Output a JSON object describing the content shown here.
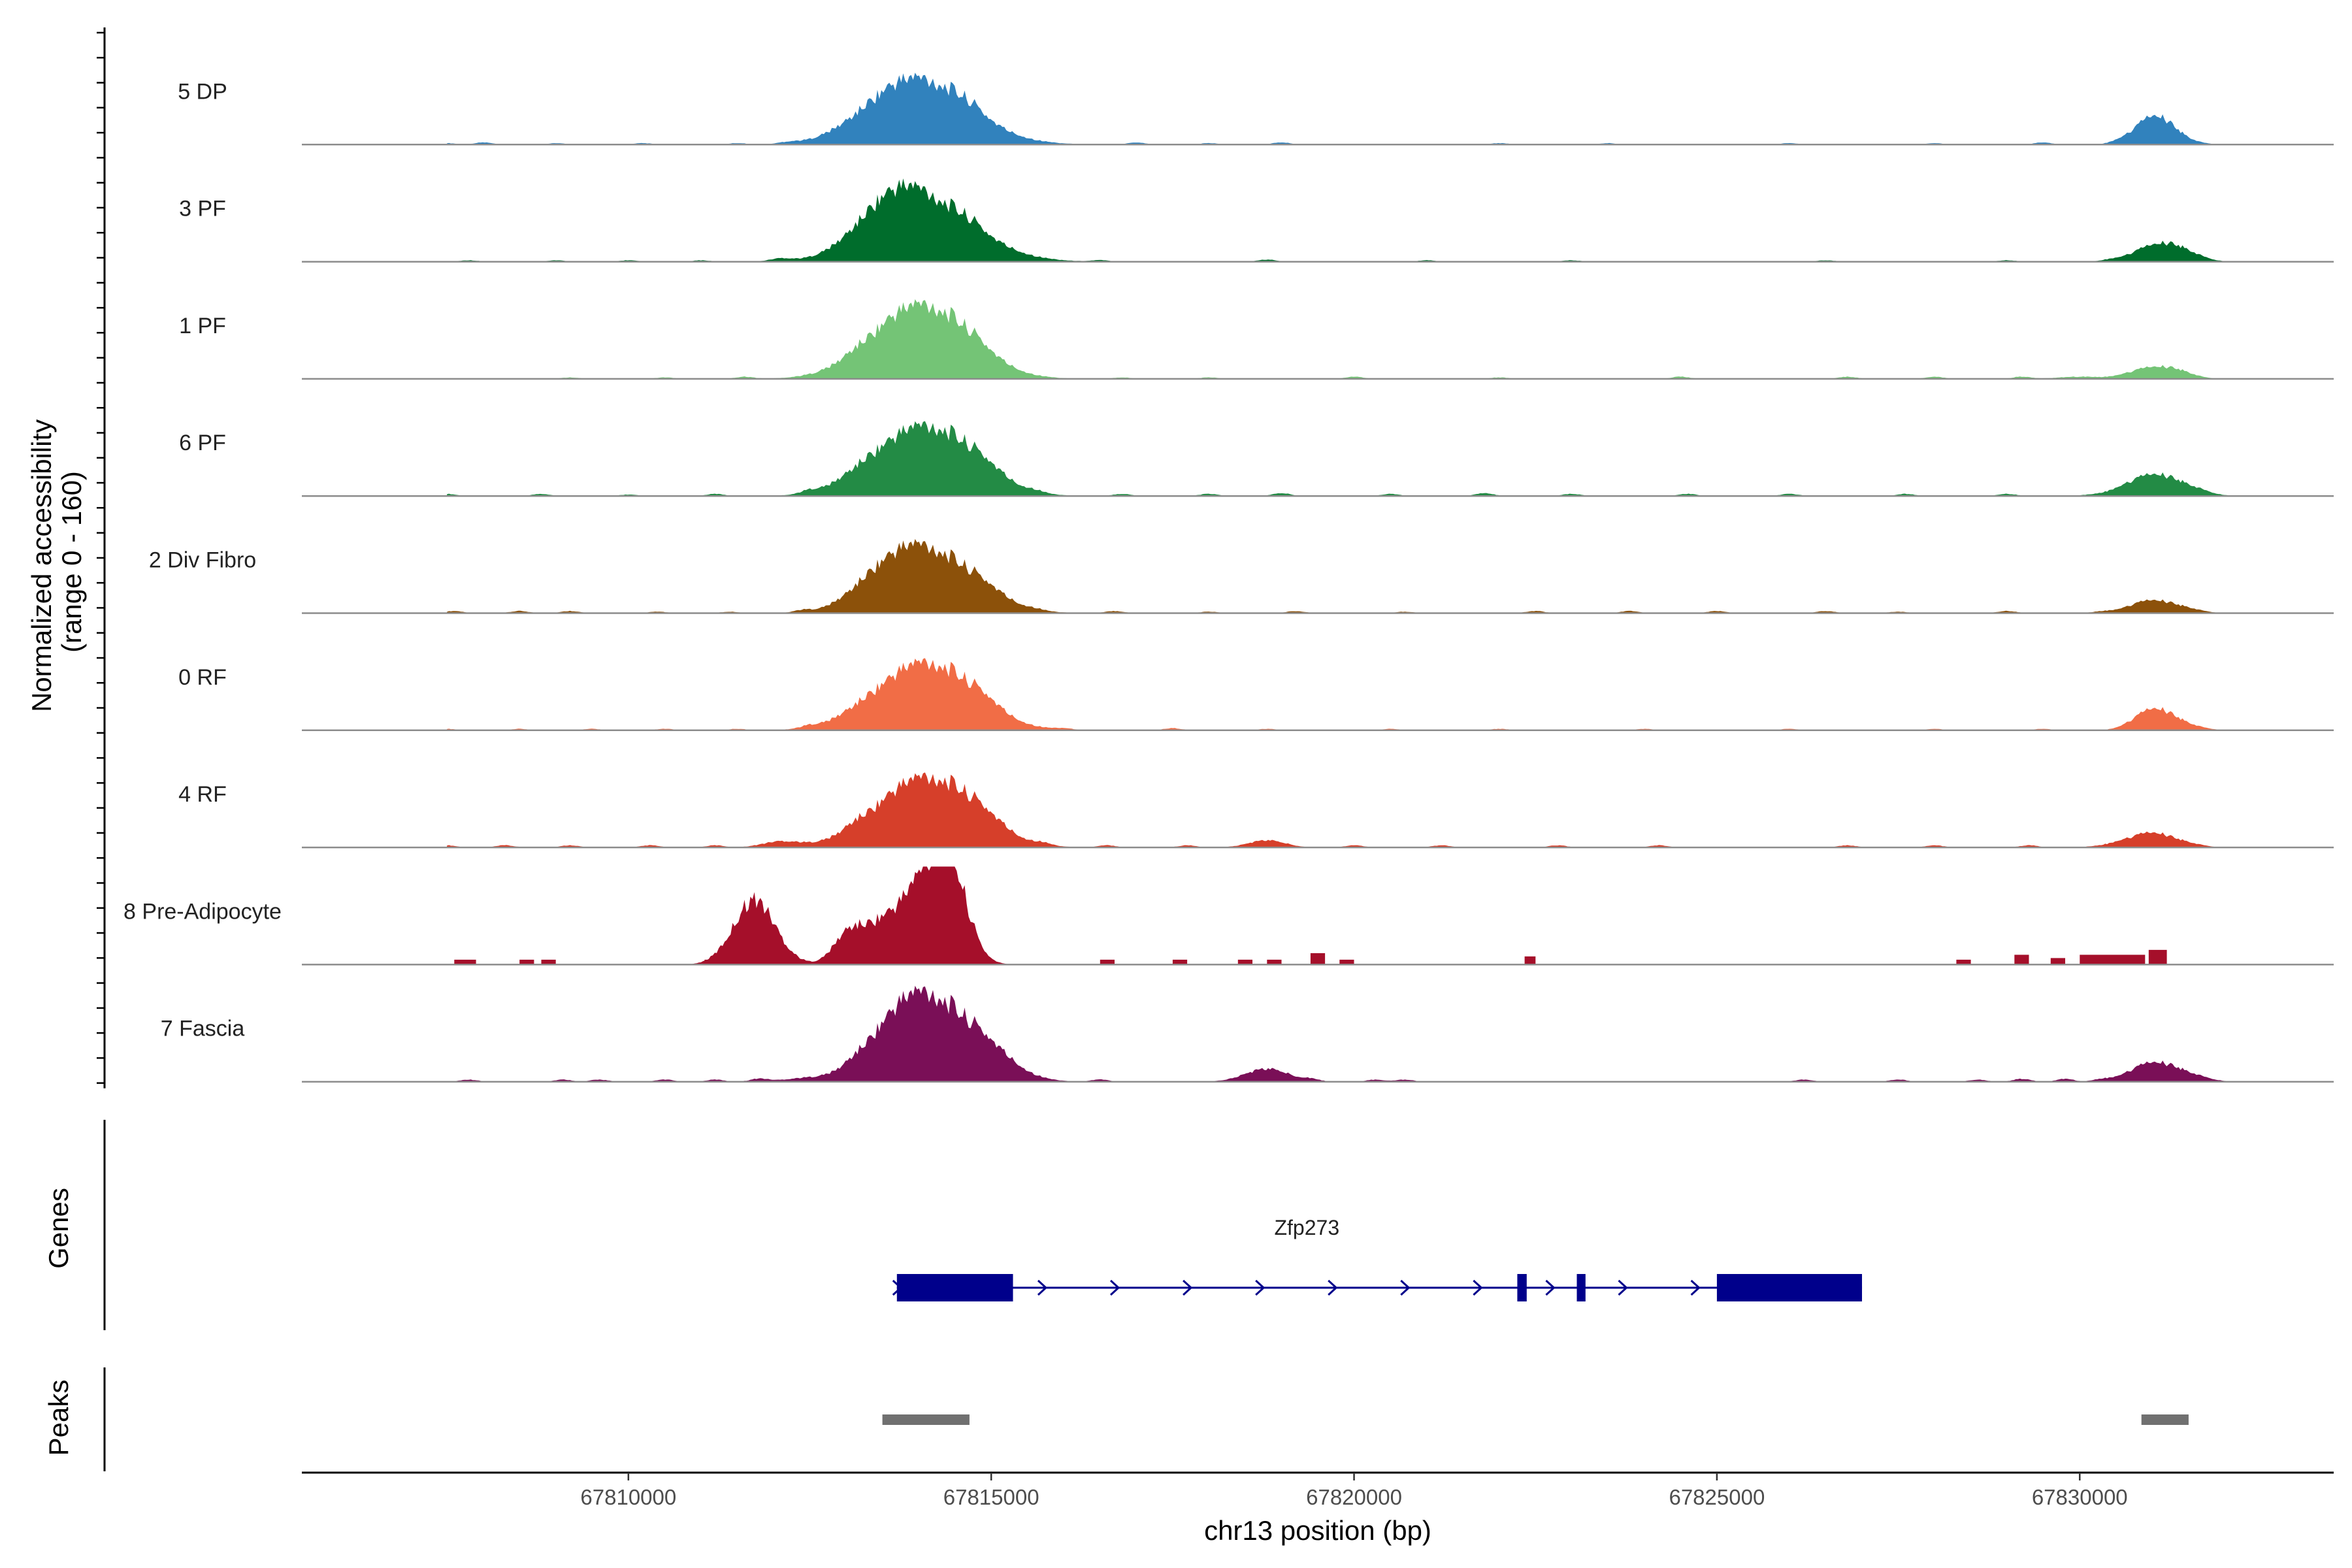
{
  "chart_data": {
    "type": "area",
    "title": "",
    "y_axis_title": [
      "Normalized accessibility",
      "(range 0 - 160)"
    ],
    "y_range": [
      0,
      160
    ],
    "x_axis_title": "chr13 position (bp)",
    "xlim": [
      67805500,
      67833500
    ],
    "x_ticks": [
      67810000,
      67815000,
      67820000,
      67825000,
      67830000
    ],
    "x_tick_labels": [
      "67810000",
      "67815000",
      "67820000",
      "67825000",
      "67830000"
    ],
    "tracks": [
      {
        "name": "5 DP",
        "color": "#3182BD",
        "peaks": [
          [
            67813750,
            20,
            600
          ],
          [
            67814150,
            29,
            700
          ],
          [
            67814700,
            4,
            200
          ],
          [
            67831000,
            18,
            250
          ],
          [
            67831300,
            4,
            250
          ]
        ],
        "noise": [
          [
            67807500,
            1
          ],
          [
            67808000,
            1.5
          ],
          [
            67809000,
            1
          ],
          [
            67810200,
            1
          ],
          [
            67811500,
            1
          ],
          [
            67812200,
            1
          ],
          [
            67817000,
            1.5
          ],
          [
            67818000,
            1
          ],
          [
            67819000,
            1.5
          ],
          [
            67822000,
            1
          ],
          [
            67823500,
            1
          ],
          [
            67826000,
            1
          ],
          [
            67828000,
            1
          ],
          [
            67829500,
            1.5
          ],
          [
            67830500,
            1
          ]
        ]
      },
      {
        "name": "3 PF",
        "color": "#006D2C",
        "peaks": [
          [
            67813650,
            28,
            500
          ],
          [
            67814200,
            31,
            700
          ],
          [
            67814700,
            4,
            200
          ],
          [
            67812100,
            2,
            150
          ],
          [
            67831000,
            10,
            280
          ],
          [
            67831400,
            7,
            250
          ]
        ],
        "noise": [
          [
            67807800,
            1
          ],
          [
            67809000,
            1
          ],
          [
            67810000,
            1
          ],
          [
            67811000,
            1
          ],
          [
            67816500,
            1
          ],
          [
            67818800,
            1.5
          ],
          [
            67821000,
            1
          ],
          [
            67823000,
            1
          ],
          [
            67826500,
            1
          ],
          [
            67829000,
            1
          ],
          [
            67830400,
            1
          ]
        ]
      },
      {
        "name": "1 PF",
        "color": "#74C476",
        "peaks": [
          [
            67813750,
            28,
            600
          ],
          [
            67814300,
            30,
            600
          ],
          [
            67814800,
            3,
            200
          ],
          [
            67831000,
            8,
            300
          ],
          [
            67831400,
            3,
            200
          ],
          [
            67830000,
            1.5,
            300
          ]
        ],
        "noise": [
          [
            67809200,
            1
          ],
          [
            67810500,
            1
          ],
          [
            67811600,
            1.5
          ],
          [
            67813100,
            1.5
          ],
          [
            67816800,
            1
          ],
          [
            67818000,
            1
          ],
          [
            67820000,
            1.5
          ],
          [
            67822000,
            1
          ],
          [
            67824500,
            1.5
          ],
          [
            67826800,
            1.5
          ],
          [
            67828000,
            1.5
          ],
          [
            67829200,
            1.5
          ]
        ]
      },
      {
        "name": "6 PF",
        "color": "#238B45",
        "peaks": [
          [
            67813800,
            27,
            600
          ],
          [
            67814350,
            28,
            600
          ],
          [
            67814900,
            5,
            250
          ],
          [
            67813150,
            3,
            250
          ],
          [
            67831000,
            14,
            300
          ],
          [
            67831500,
            5,
            250
          ],
          [
            67830500,
            2,
            300
          ]
        ],
        "noise": [
          [
            67807500,
            1.5
          ],
          [
            67808800,
            1.5
          ],
          [
            67810000,
            1
          ],
          [
            67811200,
            1.5
          ],
          [
            67812500,
            2
          ],
          [
            67815600,
            1.5
          ],
          [
            67816800,
            1.5
          ],
          [
            67818000,
            1.5
          ],
          [
            67819000,
            2
          ],
          [
            67820500,
            1.5
          ],
          [
            67821800,
            2
          ],
          [
            67823000,
            1.5
          ],
          [
            67824600,
            1.5
          ],
          [
            67826000,
            1.5
          ],
          [
            67827600,
            1.5
          ],
          [
            67829000,
            1.5
          ]
        ]
      },
      {
        "name": "2 Div Fibro",
        "color": "#8C510A",
        "peaks": [
          [
            67813700,
            25,
            500
          ],
          [
            67814300,
            31,
            600
          ],
          [
            67814900,
            4,
            250
          ],
          [
            67813200,
            2,
            250
          ],
          [
            67831000,
            9,
            300
          ],
          [
            67831500,
            2,
            200
          ]
        ],
        "noise": [
          [
            67807600,
            1.5
          ],
          [
            67808500,
            1.5
          ],
          [
            67809200,
            1.5
          ],
          [
            67810400,
            1
          ],
          [
            67811400,
            1
          ],
          [
            67812400,
            1.5
          ],
          [
            67815600,
            1
          ],
          [
            67816700,
            1.5
          ],
          [
            67818000,
            1
          ],
          [
            67819200,
            1.5
          ],
          [
            67820700,
            1
          ],
          [
            67822500,
            1.5
          ],
          [
            67823800,
            1.5
          ],
          [
            67825000,
            1.5
          ],
          [
            67826500,
            1.5
          ],
          [
            67827500,
            1
          ],
          [
            67829000,
            1.5
          ],
          [
            67830300,
            1
          ]
        ]
      },
      {
        "name": "0 RF",
        "color": "#F16D46",
        "peaks": [
          [
            67813800,
            25,
            600
          ],
          [
            67814350,
            28,
            600
          ],
          [
            67814900,
            4,
            200
          ],
          [
            67813100,
            1.5,
            200
          ],
          [
            67831000,
            14,
            250
          ],
          [
            67831400,
            4,
            250
          ]
        ],
        "noise": [
          [
            67807500,
            1
          ],
          [
            67808500,
            1
          ],
          [
            67809500,
            1
          ],
          [
            67810500,
            1
          ],
          [
            67811500,
            1
          ],
          [
            67812500,
            1.5
          ],
          [
            67816000,
            1
          ],
          [
            67817500,
            1.5
          ],
          [
            67818800,
            1
          ],
          [
            67820500,
            1
          ],
          [
            67822000,
            1
          ],
          [
            67824000,
            1
          ],
          [
            67826000,
            1
          ],
          [
            67828000,
            1
          ],
          [
            67829500,
            1
          ]
        ]
      },
      {
        "name": "4 RF",
        "color": "#D63F2A",
        "peaks": [
          [
            67813800,
            25,
            600
          ],
          [
            67814350,
            30,
            600
          ],
          [
            67814900,
            5,
            250
          ],
          [
            67812100,
            4,
            250
          ],
          [
            67818800,
            5,
            250
          ],
          [
            67831000,
            10,
            280
          ],
          [
            67830500,
            2,
            250
          ],
          [
            67831500,
            2,
            200
          ]
        ],
        "noise": [
          [
            67807500,
            1.5
          ],
          [
            67808300,
            1.5
          ],
          [
            67809200,
            1.5
          ],
          [
            67810300,
            1.5
          ],
          [
            67811200,
            1.5
          ],
          [
            67813100,
            2.5
          ],
          [
            67815700,
            1.5
          ],
          [
            67816600,
            1.5
          ],
          [
            67817700,
            1.5
          ],
          [
            67820000,
            1.5
          ],
          [
            67821200,
            1.5
          ],
          [
            67822800,
            1.5
          ],
          [
            67824200,
            1.5
          ],
          [
            67826800,
            1.5
          ],
          [
            67828000,
            1.5
          ],
          [
            67829300,
            1.5
          ]
        ]
      },
      {
        "name": "8 Pre-Adipocyte",
        "color": "#A50F2A",
        "peaks": [
          [
            67811700,
            40,
            250
          ],
          [
            67812000,
            10,
            250
          ],
          [
            67813000,
            13,
            200
          ],
          [
            67813250,
            18,
            250
          ],
          [
            67813800,
            23,
            250
          ],
          [
            67814200,
            55,
            300
          ],
          [
            67814450,
            35,
            200
          ],
          [
            67814700,
            7,
            200
          ],
          [
            67811300,
            3,
            200
          ],
          [
            67813500,
            8,
            150
          ]
        ],
        "blocks": [
          [
            67807600,
            67807900,
            3
          ],
          [
            67808500,
            67808700,
            3
          ],
          [
            67808800,
            67809000,
            3
          ],
          [
            67811050,
            67811250,
            3
          ],
          [
            67816500,
            67816700,
            3
          ],
          [
            67817500,
            67817700,
            3
          ],
          [
            67818400,
            67818600,
            3
          ],
          [
            67818800,
            67819000,
            3
          ],
          [
            67819400,
            67819600,
            7
          ],
          [
            67819800,
            67820000,
            3
          ],
          [
            67822350,
            67822500,
            5
          ],
          [
            67828300,
            67828500,
            3
          ],
          [
            67829100,
            67829300,
            6
          ],
          [
            67829600,
            67829800,
            4
          ],
          [
            67830000,
            67830900,
            6
          ],
          [
            67830950,
            67831200,
            9
          ]
        ],
        "noise": []
      },
      {
        "name": "7 Fascia",
        "color": "#7A0F57",
        "peaks": [
          [
            67813800,
            30,
            500
          ],
          [
            67814300,
            40,
            600
          ],
          [
            67814900,
            7,
            250
          ],
          [
            67815300,
            3,
            250
          ],
          [
            67812400,
            2,
            300
          ],
          [
            67818800,
            9,
            300
          ],
          [
            67831000,
            13,
            300
          ],
          [
            67831500,
            4,
            250
          ]
        ],
        "noise": [
          [
            67807800,
            1.5
          ],
          [
            67809100,
            1.5
          ],
          [
            67809600,
            1.5
          ],
          [
            67810500,
            1.5
          ],
          [
            67811200,
            1.5
          ],
          [
            67811800,
            2
          ],
          [
            67813100,
            2
          ],
          [
            67816500,
            1.5
          ],
          [
            67819400,
            1.5
          ],
          [
            67820300,
            1.5
          ],
          [
            67820700,
            1.5
          ],
          [
            67826200,
            1.5
          ],
          [
            67827500,
            1.5
          ],
          [
            67828600,
            1.5
          ],
          [
            67829200,
            2
          ],
          [
            67829800,
            2
          ],
          [
            67830300,
            1.5
          ]
        ]
      }
    ],
    "gene_panel_title": "Genes",
    "genes": [
      {
        "name": "Zfp273",
        "strand": "+",
        "start": 67813700,
        "end": 67827000,
        "color": "#00008B",
        "exons": [
          [
            67813700,
            67815300
          ],
          [
            67822250,
            67822380
          ],
          [
            67823070,
            67823190
          ],
          [
            67825000,
            67827000
          ]
        ]
      }
    ],
    "peak_panel_title": "Peaks",
    "peak_color": "#707070",
    "peak_regions": [
      [
        67813500,
        67814700
      ],
      [
        67830850,
        67831500
      ]
    ]
  }
}
